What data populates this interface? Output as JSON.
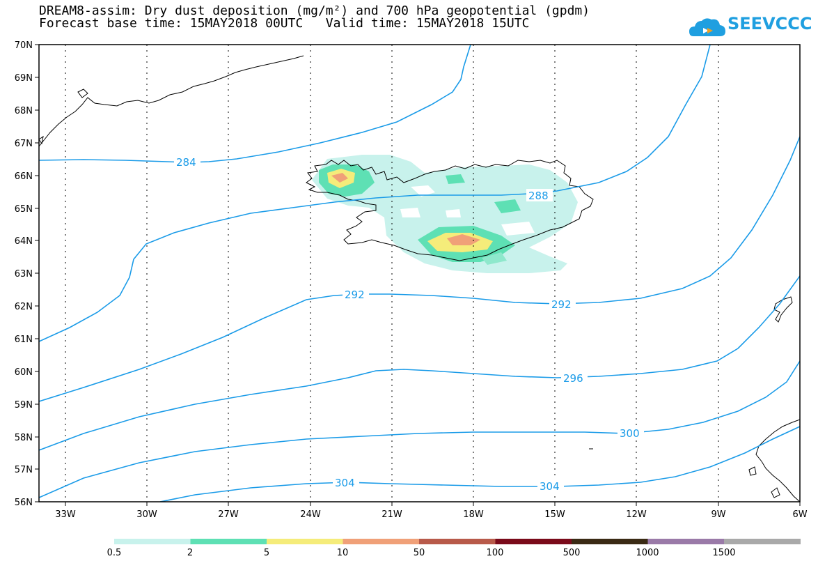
{
  "title_line1": "DREAM8-assim: Dry dust deposition (mg/m²) and 700 hPa geopotential (gpdm)",
  "title_line2": "Forecast base time: 15MAY2018 00UTC   Valid time: 15MAY2018 15UTC",
  "logo_text": "SEEVCCC",
  "lat_labels": [
    "70N",
    "69N",
    "68N",
    "67N",
    "66N",
    "65N",
    "64N",
    "63N",
    "62N",
    "61N",
    "60N",
    "59N",
    "58N",
    "57N",
    "56N"
  ],
  "lon_labels": [
    "33W",
    "30W",
    "27W",
    "24W",
    "21W",
    "18W",
    "15W",
    "12W",
    "9W",
    "6W"
  ],
  "contour_labels": [
    "284",
    "288",
    "292",
    "292",
    "296",
    "300",
    "304",
    "304"
  ],
  "legend": {
    "labels": [
      "0.5",
      "2",
      "5",
      "10",
      "50",
      "100",
      "500",
      "1000",
      "1500"
    ],
    "colors": [
      "#c8f2ec",
      "#5ee0b4",
      "#f5ec7a",
      "#f0a078",
      "#b85a4a",
      "#7a0a1a",
      "#3a2a14",
      "#9a7aa8",
      "#a9a9a9"
    ]
  },
  "colors": {
    "contour": "#1a9be8",
    "coast": "#000000"
  }
}
